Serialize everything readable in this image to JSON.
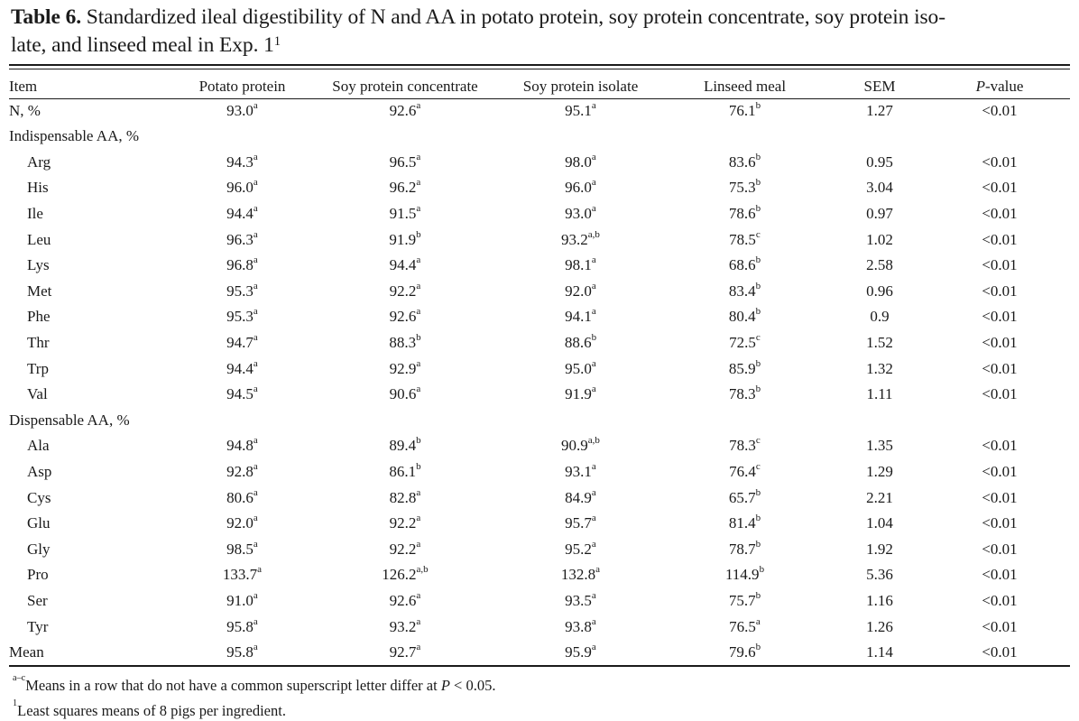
{
  "caption": {
    "label": "Table 6.",
    "text_line1": " Standardized ileal digestibility of N and AA in potato protein, soy protein concentrate, soy protein iso-",
    "text_line2": "late, and linseed meal in Exp. 1",
    "footnote_ref": "1"
  },
  "columns": [
    "Item",
    "Potato protein",
    "Soy protein concentrate",
    "Soy protein isolate",
    "Linseed meal",
    "SEM",
    "P-value"
  ],
  "columns_p_italic": "P",
  "columns_p_rest": "-value",
  "rows": [
    {
      "item": "N, %",
      "indent": false,
      "vals": [
        [
          "93.0",
          "a"
        ],
        [
          "92.6",
          "a"
        ],
        [
          "95.1",
          "a"
        ],
        [
          "76.1",
          "b"
        ]
      ],
      "sem": "1.27",
      "p": "<0.01"
    },
    {
      "item": "Indispensable AA, %",
      "indent": false,
      "section": true
    },
    {
      "item": "Arg",
      "indent": true,
      "vals": [
        [
          "94.3",
          "a"
        ],
        [
          "96.5",
          "a"
        ],
        [
          "98.0",
          "a"
        ],
        [
          "83.6",
          "b"
        ]
      ],
      "sem": "0.95",
      "p": "<0.01"
    },
    {
      "item": "His",
      "indent": true,
      "vals": [
        [
          "96.0",
          "a"
        ],
        [
          "96.2",
          "a"
        ],
        [
          "96.0",
          "a"
        ],
        [
          "75.3",
          "b"
        ]
      ],
      "sem": "3.04",
      "p": "<0.01"
    },
    {
      "item": "Ile",
      "indent": true,
      "vals": [
        [
          "94.4",
          "a"
        ],
        [
          "91.5",
          "a"
        ],
        [
          "93.0",
          "a"
        ],
        [
          "78.6",
          "b"
        ]
      ],
      "sem": "0.97",
      "p": "<0.01"
    },
    {
      "item": "Leu",
      "indent": true,
      "vals": [
        [
          "96.3",
          "a"
        ],
        [
          "91.9",
          "b"
        ],
        [
          "93.2",
          "a,b"
        ],
        [
          "78.5",
          "c"
        ]
      ],
      "sem": "1.02",
      "p": "<0.01"
    },
    {
      "item": "Lys",
      "indent": true,
      "vals": [
        [
          "96.8",
          "a"
        ],
        [
          "94.4",
          "a"
        ],
        [
          "98.1",
          "a"
        ],
        [
          "68.6",
          "b"
        ]
      ],
      "sem": "2.58",
      "p": "<0.01"
    },
    {
      "item": "Met",
      "indent": true,
      "vals": [
        [
          "95.3",
          "a"
        ],
        [
          "92.2",
          "a"
        ],
        [
          "92.0",
          "a"
        ],
        [
          "83.4",
          "b"
        ]
      ],
      "sem": "0.96",
      "p": "<0.01"
    },
    {
      "item": "Phe",
      "indent": true,
      "vals": [
        [
          "95.3",
          "a"
        ],
        [
          "92.6",
          "a"
        ],
        [
          "94.1",
          "a"
        ],
        [
          "80.4",
          "b"
        ]
      ],
      "sem": "0.9",
      "p": "<0.01"
    },
    {
      "item": "Thr",
      "indent": true,
      "vals": [
        [
          "94.7",
          "a"
        ],
        [
          "88.3",
          "b"
        ],
        [
          "88.6",
          "b"
        ],
        [
          "72.5",
          "c"
        ]
      ],
      "sem": "1.52",
      "p": "<0.01"
    },
    {
      "item": "Trp",
      "indent": true,
      "vals": [
        [
          "94.4",
          "a"
        ],
        [
          "92.9",
          "a"
        ],
        [
          "95.0",
          "a"
        ],
        [
          "85.9",
          "b"
        ]
      ],
      "sem": "1.32",
      "p": "<0.01"
    },
    {
      "item": "Val",
      "indent": true,
      "vals": [
        [
          "94.5",
          "a"
        ],
        [
          "90.6",
          "a"
        ],
        [
          "91.9",
          "a"
        ],
        [
          "78.3",
          "b"
        ]
      ],
      "sem": "1.11",
      "p": "<0.01"
    },
    {
      "item": "Dispensable AA, %",
      "indent": false,
      "section": true
    },
    {
      "item": "Ala",
      "indent": true,
      "vals": [
        [
          "94.8",
          "a"
        ],
        [
          "89.4",
          "b"
        ],
        [
          "90.9",
          "a,b"
        ],
        [
          "78.3",
          "c"
        ]
      ],
      "sem": "1.35",
      "p": "<0.01"
    },
    {
      "item": "Asp",
      "indent": true,
      "vals": [
        [
          "92.8",
          "a"
        ],
        [
          "86.1",
          "b"
        ],
        [
          "93.1",
          "a"
        ],
        [
          "76.4",
          "c"
        ]
      ],
      "sem": "1.29",
      "p": "<0.01"
    },
    {
      "item": "Cys",
      "indent": true,
      "vals": [
        [
          "80.6",
          "a"
        ],
        [
          "82.8",
          "a"
        ],
        [
          "84.9",
          "a"
        ],
        [
          "65.7",
          "b"
        ]
      ],
      "sem": "2.21",
      "p": "<0.01"
    },
    {
      "item": "Glu",
      "indent": true,
      "vals": [
        [
          "92.0",
          "a"
        ],
        [
          "92.2",
          "a"
        ],
        [
          "95.7",
          "a"
        ],
        [
          "81.4",
          "b"
        ]
      ],
      "sem": "1.04",
      "p": "<0.01"
    },
    {
      "item": "Gly",
      "indent": true,
      "vals": [
        [
          "98.5",
          "a"
        ],
        [
          "92.2",
          "a"
        ],
        [
          "95.2",
          "a"
        ],
        [
          "78.7",
          "b"
        ]
      ],
      "sem": "1.92",
      "p": "<0.01"
    },
    {
      "item": "Pro",
      "indent": true,
      "vals": [
        [
          "133.7",
          "a"
        ],
        [
          "126.2",
          "a,b"
        ],
        [
          "132.8",
          "a"
        ],
        [
          "114.9",
          "b"
        ]
      ],
      "sem": "5.36",
      "p": "<0.01"
    },
    {
      "item": "Ser",
      "indent": true,
      "vals": [
        [
          "91.0",
          "a"
        ],
        [
          "92.6",
          "a"
        ],
        [
          "93.5",
          "a"
        ],
        [
          "75.7",
          "b"
        ]
      ],
      "sem": "1.16",
      "p": "<0.01"
    },
    {
      "item": "Tyr",
      "indent": true,
      "vals": [
        [
          "95.8",
          "a"
        ],
        [
          "93.2",
          "a"
        ],
        [
          "93.8",
          "a"
        ],
        [
          "76.5",
          "a"
        ]
      ],
      "sem": "1.26",
      "p": "<0.01"
    },
    {
      "item": "Mean",
      "indent": false,
      "vals": [
        [
          "95.8",
          "a"
        ],
        [
          "92.7",
          "a"
        ],
        [
          "95.9",
          "a"
        ],
        [
          "79.6",
          "b"
        ]
      ],
      "sem": "1.14",
      "p": "<0.01"
    }
  ],
  "footnotes": {
    "f1_sup": "a–c",
    "f1_text": "Means in a row that do not have a common superscript letter differ at ",
    "f1_p": "P",
    "f1_tail": " < 0.05.",
    "f2_sup": "1",
    "f2_text": "Least squares means of 8 pigs per ingredient."
  }
}
